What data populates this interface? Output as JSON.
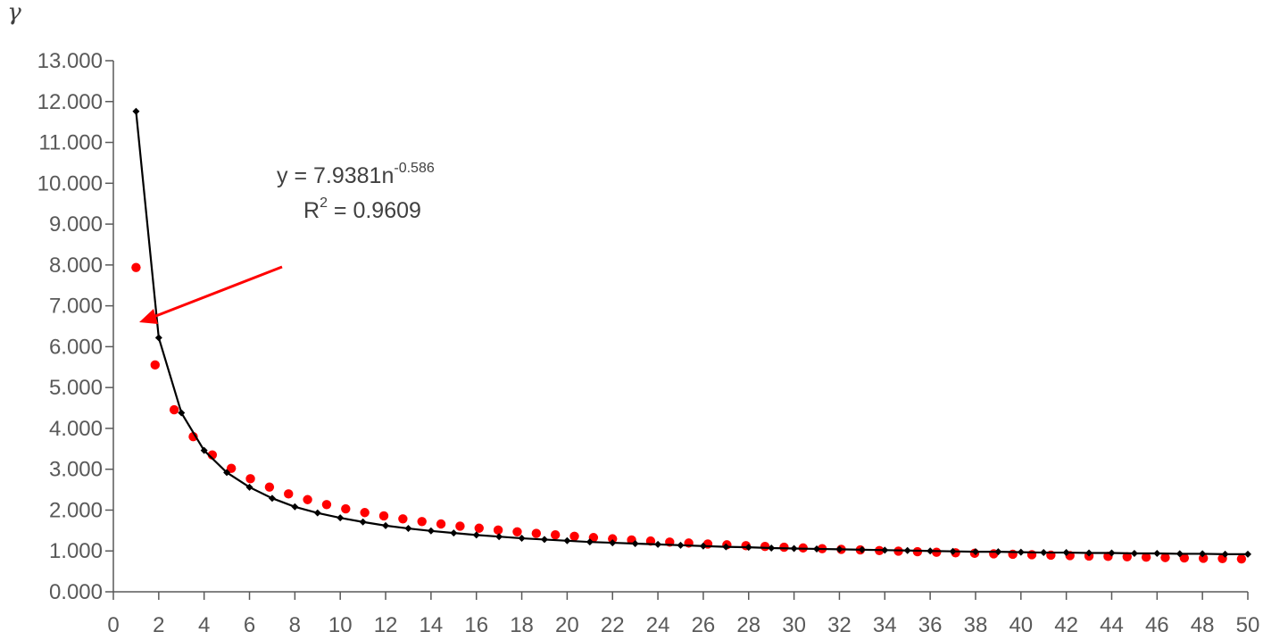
{
  "chart_data": {
    "type": "scatter",
    "ylabel": "γ",
    "xlabel": "",
    "xlim": [
      0,
      50
    ],
    "ylim": [
      0,
      13
    ],
    "x_ticks": [
      "0",
      "2",
      "4",
      "6",
      "8",
      "10",
      "12",
      "14",
      "16",
      "18",
      "20",
      "22",
      "24",
      "26",
      "28",
      "30",
      "32",
      "34",
      "36",
      "38",
      "40",
      "42",
      "44",
      "46",
      "48",
      "50"
    ],
    "y_ticks": [
      "0.000",
      "1.000",
      "2.000",
      "3.000",
      "4.000",
      "5.000",
      "6.000",
      "7.000",
      "8.000",
      "9.000",
      "10.000",
      "11.000",
      "12.000",
      "13.000"
    ],
    "trendline": {
      "equation_prefix": "y = 7.9381n",
      "equation_exponent": "-0.586",
      "r2_prefix": "R",
      "r2_exponent": "2",
      "r2_suffix": " = 0.9609",
      "coefficient": 7.9381,
      "exponent": -0.586,
      "color": "#ff0000"
    },
    "series": [
      {
        "kind": "line_with_markers",
        "color": "#000000",
        "x": [
          1,
          2,
          3,
          4,
          5,
          6,
          7,
          8,
          9,
          10,
          11,
          12,
          13,
          14,
          15,
          16,
          17,
          18,
          19,
          20,
          21,
          22,
          23,
          24,
          25,
          26,
          27,
          28,
          29,
          30,
          31,
          32,
          33,
          34,
          35,
          36,
          37,
          38,
          39,
          40,
          41,
          42,
          43,
          44,
          45,
          46,
          47,
          48,
          49,
          50
        ],
        "y": [
          11.76,
          6.22,
          4.38,
          3.46,
          2.92,
          2.56,
          2.29,
          2.08,
          1.93,
          1.81,
          1.71,
          1.62,
          1.55,
          1.49,
          1.44,
          1.39,
          1.35,
          1.31,
          1.28,
          1.25,
          1.22,
          1.2,
          1.18,
          1.16,
          1.14,
          1.12,
          1.1,
          1.09,
          1.07,
          1.06,
          1.05,
          1.04,
          1.03,
          1.02,
          1.01,
          1.0,
          0.99,
          0.98,
          0.98,
          0.97,
          0.96,
          0.96,
          0.95,
          0.95,
          0.94,
          0.94,
          0.93,
          0.93,
          0.92,
          0.92
        ]
      }
    ]
  }
}
